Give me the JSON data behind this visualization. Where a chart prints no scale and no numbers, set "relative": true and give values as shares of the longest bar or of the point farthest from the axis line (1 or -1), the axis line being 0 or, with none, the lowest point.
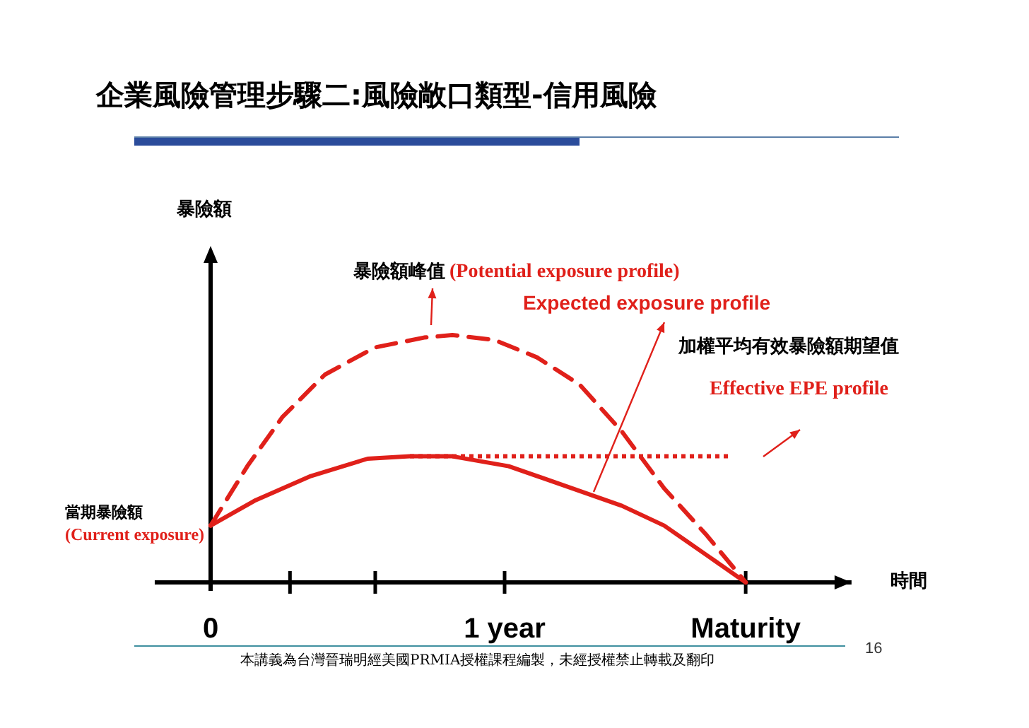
{
  "chart_data": {
    "type": "line",
    "title": "企業風險管理步驟二:風險敞口類型-信用風險",
    "xlabel": "時間",
    "relative": true,
    "xlim": [
      -0.19,
      2.18
    ],
    "xticks": [
      {
        "value": 0,
        "label": "0"
      },
      {
        "value": 0.27,
        "label": null
      },
      {
        "value": 0.56,
        "label": null
      },
      {
        "value": 1,
        "label": "1 year"
      },
      {
        "value": 1.82,
        "label": "Maturity"
      }
    ],
    "series": [
      {
        "name": "(Potential exposure profile)",
        "color": "#e0201a",
        "line_style": "dashed",
        "x": [
          0,
          0.125,
          0.245,
          0.389,
          0.558,
          0.726,
          0.822,
          0.966,
          1.11,
          1.255,
          1.399,
          1.543,
          1.688,
          1.82
        ],
        "values": [
          0.23,
          0.47,
          0.67,
          0.84,
          0.95,
          0.99,
          1,
          0.98,
          0.91,
          0.8,
          0.61,
          0.38,
          0.19,
          0
        ]
      },
      {
        "name": "Expected exposure profile",
        "color": "#e0201a",
        "line_style": "solid",
        "x": [
          0,
          0.149,
          0.341,
          0.534,
          0.678,
          0.822,
          1.014,
          1.207,
          1.399,
          1.543,
          1.688,
          1.82
        ],
        "values": [
          0.23,
          0.33,
          0.43,
          0.5,
          0.51,
          0.51,
          0.47,
          0.39,
          0.31,
          0.23,
          0.11,
          0
        ]
      },
      {
        "name": "Effective EPE profile",
        "color": "#e0201a",
        "line_style": "dotted",
        "x": [
          0.678,
          1.764
        ],
        "values": [
          0.51,
          0.51
        ]
      }
    ],
    "annotations": [
      "暴險額峰值",
      "加權平均有效暴險額期望值",
      "當期暴險額",
      "(Current exposure)",
      "暴險額",
      "本講義為台灣晉瑞明經美國PRMIA授權課程編製，未經授權禁止轉載及翻印",
      "16"
    ]
  }
}
